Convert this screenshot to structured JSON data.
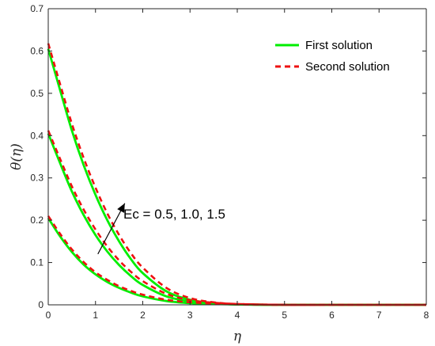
{
  "chart_data": {
    "type": "line",
    "xlabel": "η",
    "ylabel": "θ(η)",
    "xlim": [
      0,
      8
    ],
    "ylim": [
      0,
      0.7
    ],
    "xticks": [
      0,
      1,
      2,
      3,
      4,
      5,
      6,
      7,
      8
    ],
    "yticks": [
      0,
      0.1,
      0.2,
      0.3,
      0.4,
      0.5,
      0.6,
      0.7
    ],
    "xtick_labels": [
      "0",
      "1",
      "2",
      "3",
      "4",
      "5",
      "6",
      "7",
      "8"
    ],
    "ytick_labels": [
      "0",
      "0.1",
      "0.2",
      "0.3",
      "0.4",
      "0.5",
      "0.6",
      "0.7"
    ],
    "grid": false,
    "legend_position": "top-right",
    "legend": [
      {
        "label": "First solution",
        "color": "#00ee00",
        "style": "solid"
      },
      {
        "label": "Second solution",
        "color": "#ee1111",
        "style": "dashed"
      }
    ],
    "annotation": {
      "text": "Ec = 0.5, 1.0, 1.5",
      "arrow_from": [
        1.05,
        0.12
      ],
      "arrow_to": [
        1.62,
        0.24
      ]
    },
    "series": [
      {
        "group": "First solution",
        "Ec": 0.5,
        "x": [
          0,
          0.25,
          0.5,
          0.75,
          1.0,
          1.25,
          1.5,
          1.75,
          2.0,
          2.5,
          3.0,
          3.5,
          4.0,
          5.0,
          6.0,
          7.0,
          8.0
        ],
        "y": [
          0.205,
          0.162,
          0.125,
          0.095,
          0.072,
          0.054,
          0.04,
          0.029,
          0.02,
          0.009,
          0.004,
          0.002,
          0.001,
          0.0,
          0.0,
          0.0,
          0.0
        ]
      },
      {
        "group": "First solution",
        "Ec": 1.0,
        "x": [
          0,
          0.25,
          0.5,
          0.75,
          1.0,
          1.25,
          1.5,
          1.75,
          2.0,
          2.5,
          3.0,
          3.5,
          4.0,
          5.0,
          6.0,
          7.0,
          8.0
        ],
        "y": [
          0.405,
          0.335,
          0.268,
          0.212,
          0.165,
          0.126,
          0.094,
          0.068,
          0.047,
          0.02,
          0.008,
          0.003,
          0.001,
          0.0,
          0.0,
          0.0,
          0.0
        ]
      },
      {
        "group": "First solution",
        "Ec": 1.5,
        "x": [
          0,
          0.25,
          0.5,
          0.75,
          1.0,
          1.25,
          1.5,
          1.75,
          2.0,
          2.5,
          3.0,
          3.5,
          4.0,
          5.0,
          6.0,
          7.0,
          8.0
        ],
        "y": [
          0.605,
          0.508,
          0.412,
          0.33,
          0.26,
          0.2,
          0.15,
          0.108,
          0.075,
          0.032,
          0.012,
          0.004,
          0.001,
          0.0,
          0.0,
          0.0,
          0.0
        ]
      },
      {
        "group": "Second solution",
        "Ec": 0.5,
        "x": [
          0,
          0.25,
          0.5,
          0.75,
          1.0,
          1.25,
          1.5,
          1.75,
          2.0,
          2.5,
          3.0,
          3.5,
          4.0,
          5.0,
          6.0,
          7.0,
          8.0
        ],
        "y": [
          0.21,
          0.168,
          0.131,
          0.101,
          0.077,
          0.059,
          0.044,
          0.033,
          0.024,
          0.012,
          0.006,
          0.003,
          0.001,
          0.0,
          0.0,
          0.0,
          0.0
        ]
      },
      {
        "group": "Second solution",
        "Ec": 1.0,
        "x": [
          0,
          0.25,
          0.5,
          0.75,
          1.0,
          1.25,
          1.5,
          1.75,
          2.0,
          2.5,
          3.0,
          3.5,
          4.0,
          5.0,
          6.0,
          7.0,
          8.0
        ],
        "y": [
          0.412,
          0.345,
          0.28,
          0.225,
          0.178,
          0.138,
          0.105,
          0.078,
          0.056,
          0.026,
          0.011,
          0.005,
          0.002,
          0.0,
          0.0,
          0.0,
          0.0
        ]
      },
      {
        "group": "Second solution",
        "Ec": 1.5,
        "x": [
          0,
          0.25,
          0.5,
          0.75,
          1.0,
          1.25,
          1.5,
          1.75,
          2.0,
          2.5,
          3.0,
          3.5,
          4.0,
          5.0,
          6.0,
          7.0,
          8.0
        ],
        "y": [
          0.618,
          0.522,
          0.428,
          0.347,
          0.277,
          0.216,
          0.165,
          0.122,
          0.088,
          0.04,
          0.016,
          0.006,
          0.002,
          0.0,
          0.0,
          0.0,
          0.0
        ]
      }
    ]
  }
}
